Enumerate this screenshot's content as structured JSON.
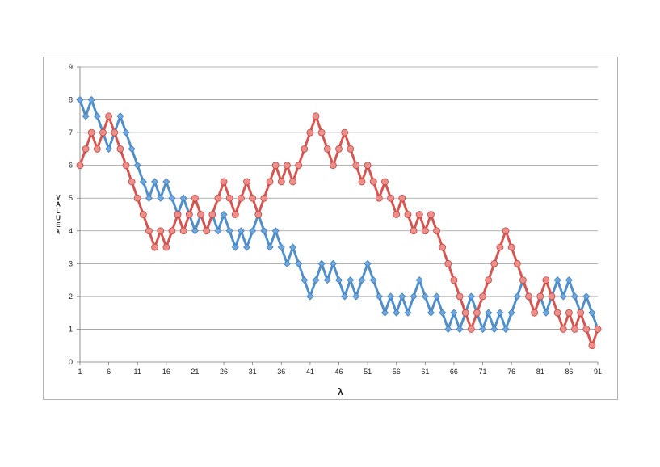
{
  "chart_data": {
    "type": "line",
    "xlabel": "λ",
    "ylabel": "VALUE λ",
    "ylim": [
      0,
      9
    ],
    "xlim": [
      1,
      91
    ],
    "y_ticks": [
      0,
      1,
      2,
      3,
      4,
      5,
      6,
      7,
      8,
      9
    ],
    "x_ticks": [
      1,
      6,
      11,
      16,
      21,
      26,
      31,
      36,
      41,
      46,
      51,
      56,
      61,
      66,
      71,
      76,
      81,
      86,
      91
    ],
    "grid": "horizontal",
    "legend": "none",
    "series": [
      {
        "color": "#4f8fcc",
        "marker": "diamond",
        "values": [
          8,
          7.5,
          8,
          7.5,
          7,
          6.5,
          7,
          7.5,
          7,
          6.5,
          6,
          5.5,
          5,
          5.5,
          5,
          5.5,
          5,
          4.5,
          5,
          4.5,
          4,
          4.5,
          4,
          4.5,
          4,
          4.5,
          4,
          3.5,
          4,
          3.5,
          4,
          4.5,
          4,
          3.5,
          4,
          3.5,
          3,
          3.5,
          3,
          2.5,
          2,
          2.5,
          3,
          2.5,
          3,
          2.5,
          2,
          2.5,
          2,
          2.5,
          3,
          2.5,
          2,
          1.5,
          2,
          1.5,
          2,
          1.5,
          2,
          2.5,
          2,
          1.5,
          2,
          1.5,
          1,
          1.5,
          1,
          1.5,
          2,
          1.5,
          1,
          1.5,
          1,
          1.5,
          1,
          1.5,
          2,
          2.5,
          2,
          1.5,
          2,
          1.5,
          2,
          2.5,
          2,
          2.5,
          2,
          1.5,
          2,
          1.5,
          1
        ]
      },
      {
        "color": "#d9534f",
        "marker": "circle",
        "values": [
          6,
          6.5,
          7,
          6.5,
          7,
          7.5,
          7,
          6.5,
          6,
          5.5,
          5,
          4.5,
          4,
          3.5,
          4,
          3.5,
          4,
          4.5,
          4,
          4.5,
          5,
          4.5,
          4,
          4.5,
          5,
          5.5,
          5,
          4.5,
          5,
          5.5,
          5,
          4.5,
          5,
          5.5,
          6,
          5.5,
          6,
          5.5,
          6,
          6.5,
          7,
          7.5,
          7,
          6.5,
          6,
          6.5,
          7,
          6.5,
          6,
          5.5,
          6,
          5.5,
          5,
          5.5,
          5,
          4.5,
          5,
          4.5,
          4,
          4.5,
          4,
          4.5,
          4,
          3.5,
          3,
          2.5,
          2,
          1.5,
          1,
          1.5,
          2,
          2.5,
          3,
          3.5,
          4,
          3.5,
          3,
          2.5,
          2,
          1.5,
          2,
          2.5,
          2,
          1.5,
          1,
          1.5,
          1,
          1.5,
          1,
          0.5,
          1
        ]
      }
    ]
  }
}
